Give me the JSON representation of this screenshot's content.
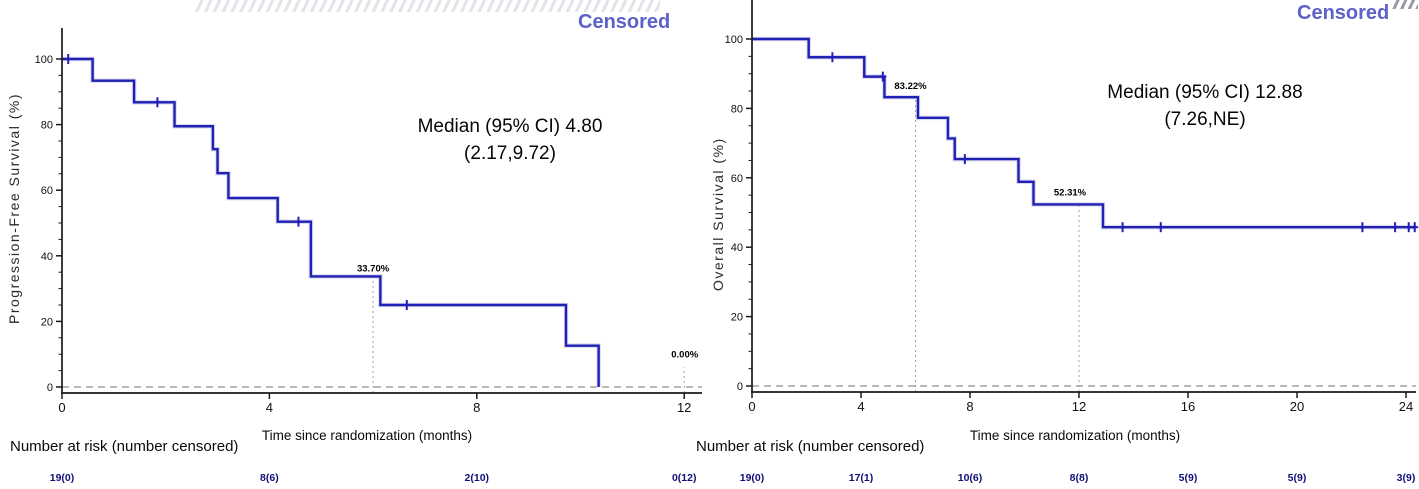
{
  "colors": {
    "curve": "#2020b2",
    "curve_halo": "#b9b9ea",
    "censored_label": "#5b62c8",
    "risk_numbers": "#10107a",
    "axis": "#1a1a1a",
    "zero_dash_line": "#909090",
    "dotted_ref_line": "#a0a0a0"
  },
  "chart_data": [
    {
      "type": "line",
      "subtype": "kaplan-meier-step",
      "ylabel": "Progression-Free Survival (%)",
      "xlabel": "Time since randomization (months)",
      "legend": "Censored",
      "median_label": [
        "Median (95% CI) 4.80",
        "(2.17,9.72)"
      ],
      "xlim": [
        0,
        12.4
      ],
      "ylim": [
        0,
        100
      ],
      "x_ticks": [
        0,
        4,
        8,
        12
      ],
      "y_ticks": [
        0,
        20,
        40,
        60,
        80,
        100
      ],
      "start_value": 100,
      "drops": [
        [
          0.59,
          93.4
        ],
        [
          1.39,
          86.8
        ],
        [
          2.17,
          79.5
        ],
        [
          2.91,
          72.5
        ],
        [
          3.0,
          65.2
        ],
        [
          3.21,
          57.6
        ],
        [
          4.16,
          50.4
        ],
        [
          4.8,
          33.7
        ],
        [
          6.14,
          25.0
        ],
        [
          9.72,
          12.6
        ],
        [
          10.35,
          0
        ]
      ],
      "end_time": 10.35,
      "censor_marks": [
        [
          0.12,
          100
        ],
        [
          1.84,
          86.8
        ],
        [
          4.56,
          50.4
        ],
        [
          6.65,
          25.0
        ]
      ],
      "annotations": [
        {
          "x": 6,
          "label": "33.70%",
          "line_top": 33.7
        },
        {
          "x": 12,
          "label": "0.00%",
          "line_top": 6
        }
      ],
      "risk_header": "Number at risk (number censored)",
      "risk_times": [
        0,
        4,
        8,
        12
      ],
      "risk_values": [
        "19(0)",
        "8(6)",
        "2(10)",
        "0(12)"
      ]
    },
    {
      "type": "line",
      "subtype": "kaplan-meier-step",
      "ylabel": "Overall Survival (%)",
      "xlabel": "Time since randomization (months)",
      "legend": "Censored",
      "median_label": [
        "Median (95% CI) 12.88",
        "(7.26,NE)"
      ],
      "xlim": [
        0,
        24.4
      ],
      "ylim": [
        0,
        100
      ],
      "x_ticks": [
        0,
        4,
        8,
        12,
        16,
        20,
        24
      ],
      "y_ticks": [
        0,
        20,
        40,
        60,
        80,
        100
      ],
      "start_value": 100,
      "drops": [
        [
          2.08,
          94.74
        ],
        [
          4.12,
          89.16
        ],
        [
          4.86,
          83.22
        ],
        [
          6.09,
          77.28
        ],
        [
          7.19,
          71.33
        ],
        [
          7.44,
          65.39
        ],
        [
          9.78,
          58.85
        ],
        [
          10.33,
          52.31
        ],
        [
          12.88,
          45.77
        ]
      ],
      "end_time": 24.38,
      "censor_marks": [
        [
          2.95,
          94.74
        ],
        [
          4.8,
          89.16
        ],
        [
          7.81,
          65.39
        ],
        [
          13.6,
          45.77
        ],
        [
          15.0,
          45.77
        ],
        [
          22.4,
          45.77
        ],
        [
          23.6,
          45.77
        ],
        [
          24.1,
          45.77
        ],
        [
          24.32,
          45.77
        ]
      ],
      "annotations": [
        {
          "x": 6,
          "label": "83.22%",
          "line_top": 83.22
        },
        {
          "x": 12,
          "label": "52.31%",
          "line_top": 52.31
        }
      ],
      "risk_header": "Number at risk (number censored)",
      "risk_times": [
        0,
        4,
        8,
        12,
        16,
        20,
        24
      ],
      "risk_values": [
        "19(0)",
        "17(1)",
        "10(6)",
        "8(8)",
        "5(9)",
        "5(9)",
        "3(9)"
      ]
    }
  ]
}
